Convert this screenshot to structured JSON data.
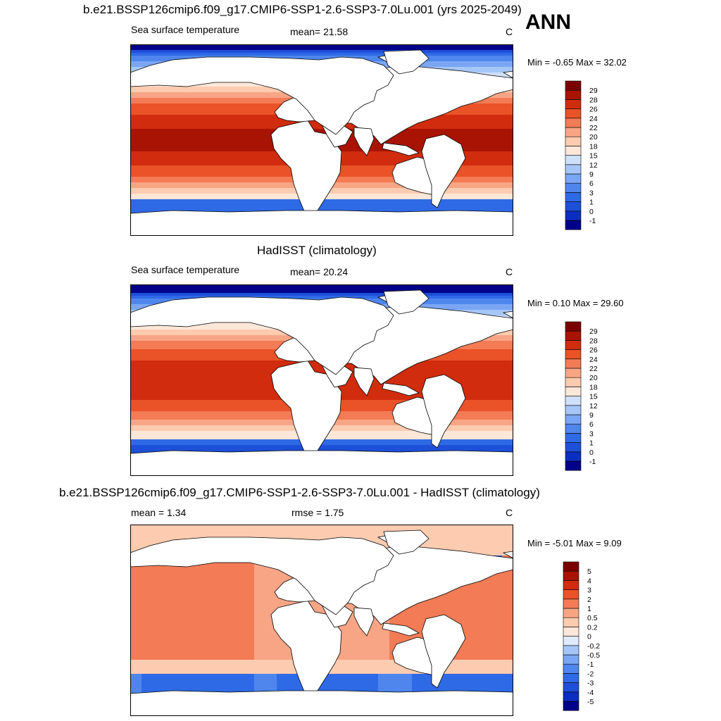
{
  "season": "ANN",
  "panels": [
    {
      "title": "b.e21.BSSP126cmip6.f09_g17.CMIP6-SSP1-2.6-SSP3-7.0Lu.001 (yrs 2025-2049)",
      "left_label": "Sea surface temperature",
      "center_label": "mean=  21.58",
      "right_label": "C",
      "minmax": "Min =  -0.65 Max =  32.02"
    },
    {
      "title": "HadISST (climatology)",
      "left_label": "Sea surface temperature",
      "center_label": "mean=  20.24",
      "right_label": "C",
      "minmax": "Min =   0.10 Max =  29.60"
    },
    {
      "title": "b.e21.BSSP126cmip6.f09_g17.CMIP6-SSP1-2.6-SSP3-7.0Lu.001 - HadISST (climatology)",
      "left_label": "mean =   1.34",
      "center_label": "rmse =   1.75",
      "right_label": "C",
      "minmax": "Min =  -5.01 Max =   9.09"
    }
  ],
  "chart_data": [
    {
      "type": "heatmap",
      "map": "global sea surface temperature",
      "title": "b.e21.BSSP126cmip6.f09_g17.CMIP6-SSP1-2.6-SSP3-7.0Lu.001 (yrs 2025-2049)",
      "variable": "Sea surface temperature",
      "units": "C",
      "mean": 21.58,
      "min": -0.65,
      "max": 32.02,
      "colorbar_levels": [
        -1,
        0,
        1,
        3,
        6,
        9,
        12,
        15,
        18,
        20,
        22,
        24,
        26,
        28,
        29
      ],
      "colorbar_colors": [
        "#00008b",
        "#0a2fc0",
        "#1e4fd8",
        "#2f6ae6",
        "#4f86ee",
        "#7aa6f4",
        "#a6c6f8",
        "#cfe0fb",
        "#fde7d8",
        "#fccbb0",
        "#f8a585",
        "#f37b55",
        "#ea5228",
        "#d12c0e",
        "#a91303",
        "#7a0000"
      ]
    },
    {
      "type": "heatmap",
      "map": "global sea surface temperature",
      "title": "HadISST (climatology)",
      "variable": "Sea surface temperature",
      "units": "C",
      "mean": 20.24,
      "min": 0.1,
      "max": 29.6,
      "colorbar_levels": [
        -1,
        0,
        1,
        3,
        6,
        9,
        12,
        15,
        18,
        20,
        22,
        24,
        26,
        28,
        29
      ],
      "colorbar_colors": [
        "#00008b",
        "#0a2fc0",
        "#1e4fd8",
        "#2f6ae6",
        "#4f86ee",
        "#7aa6f4",
        "#a6c6f8",
        "#cfe0fb",
        "#fde7d8",
        "#fccbb0",
        "#f8a585",
        "#f37b55",
        "#ea5228",
        "#d12c0e",
        "#a91303",
        "#7a0000"
      ]
    },
    {
      "type": "heatmap",
      "map": "global sea surface temperature difference",
      "title": "b.e21.BSSP126cmip6.f09_g17.CMIP6-SSP1-2.6-SSP3-7.0Lu.001 - HadISST (climatology)",
      "units": "C",
      "mean": 1.34,
      "rmse": 1.75,
      "min": -5.01,
      "max": 9.09,
      "colorbar_levels": [
        -5,
        -4,
        -3,
        -2,
        -1,
        -0.5,
        -0.2,
        0,
        0.2,
        0.5,
        1,
        2,
        3,
        4,
        5
      ],
      "colorbar_colors": [
        "#00008b",
        "#0a2fc0",
        "#1e4fd8",
        "#2f6ae6",
        "#4f86ee",
        "#7aa6f4",
        "#a6c6f8",
        "#dfeafc",
        "#fde7d8",
        "#fccbb0",
        "#f8a585",
        "#f37b55",
        "#ea5228",
        "#d12c0e",
        "#a91303",
        "#7a0000"
      ]
    }
  ]
}
